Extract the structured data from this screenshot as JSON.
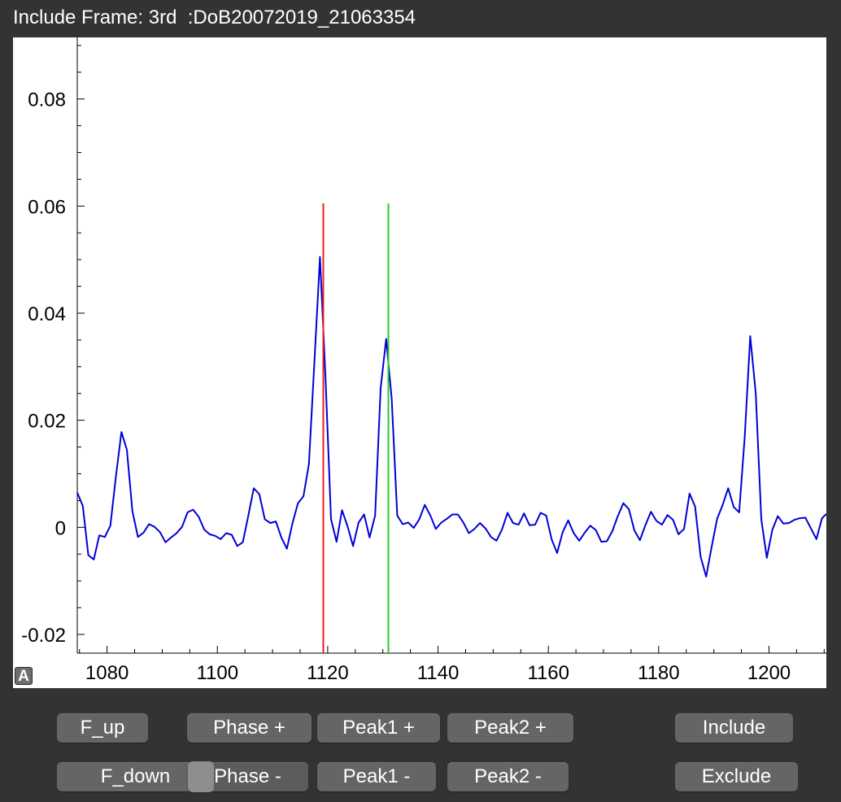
{
  "window": {
    "title": "Include Frame: 3rd  :DoB20072019_21063354"
  },
  "autoscale_button": {
    "label": "A"
  },
  "buttons": {
    "f_up": "F_up",
    "f_down": "F_down",
    "phase_plus": "Phase +",
    "phase_minus": "Phase -",
    "peak1_plus": "Peak1 +",
    "peak1_minus": "Peak1 -",
    "peak2_plus": "Peak2 +",
    "peak2_minus": "Peak2 -",
    "include": "Include",
    "exclude": "Exclude"
  },
  "chart_data": {
    "type": "line",
    "title": "",
    "xlabel": "",
    "ylabel": "",
    "xlim": [
      1074.6,
      1210.4
    ],
    "ylim": [
      -0.0235,
      0.0915
    ],
    "x_ticks": [
      1080,
      1100,
      1120,
      1140,
      1160,
      1180,
      1200
    ],
    "x_tick_labels": [
      "1080",
      "1100",
      "1120",
      "1140",
      "1160",
      "1180",
      "1200"
    ],
    "y_ticks": [
      -0.02,
      0,
      0.02,
      0.04,
      0.06,
      0.08
    ],
    "y_tick_labels": [
      "-0.02",
      "0",
      "0.02",
      "0.04",
      "0.06",
      "0.08"
    ],
    "grid": false,
    "legend": "none",
    "markers": [
      {
        "name": "peak1-marker",
        "x": 1119.2,
        "y_range": [
          -0.0235,
          0.0605
        ],
        "color": "#e8201c"
      },
      {
        "name": "peak2-marker",
        "x": 1131.0,
        "y_range": [
          -0.0235,
          0.0605
        ],
        "color": "#22cc22"
      }
    ],
    "series": [
      {
        "color": "#0000d8",
        "x": [
          1074.6,
          1075.6,
          1076.6,
          1077.6,
          1078.6,
          1079.6,
          1080.6,
          1081.6,
          1082.6,
          1083.6,
          1084.6,
          1085.6,
          1086.6,
          1087.6,
          1088.6,
          1089.6,
          1090.6,
          1091.6,
          1092.6,
          1093.6,
          1094.6,
          1095.6,
          1096.6,
          1097.6,
          1098.6,
          1099.6,
          1100.6,
          1101.6,
          1102.6,
          1103.6,
          1104.6,
          1105.6,
          1106.6,
          1107.6,
          1108.6,
          1109.6,
          1110.6,
          1111.6,
          1112.6,
          1113.6,
          1114.6,
          1115.6,
          1116.6,
          1117.6,
          1118.6,
          1119.6,
          1120.6,
          1121.6,
          1122.6,
          1123.6,
          1124.6,
          1125.6,
          1126.6,
          1127.6,
          1128.6,
          1129.6,
          1130.6,
          1131.6,
          1132.6,
          1133.6,
          1134.6,
          1135.6,
          1136.6,
          1137.6,
          1138.6,
          1139.6,
          1140.6,
          1141.6,
          1142.6,
          1143.6,
          1144.6,
          1145.6,
          1146.6,
          1147.6,
          1148.6,
          1149.6,
          1150.6,
          1151.6,
          1152.6,
          1153.6,
          1154.6,
          1155.6,
          1156.6,
          1157.6,
          1158.6,
          1159.6,
          1160.6,
          1161.6,
          1162.6,
          1163.6,
          1164.6,
          1165.6,
          1166.6,
          1167.6,
          1168.6,
          1169.6,
          1170.6,
          1171.6,
          1172.6,
          1173.6,
          1174.6,
          1175.6,
          1176.6,
          1177.6,
          1178.6,
          1179.6,
          1180.6,
          1181.6,
          1182.6,
          1183.6,
          1184.6,
          1185.6,
          1186.6,
          1187.6,
          1188.6,
          1189.6,
          1190.6,
          1191.6,
          1192.6,
          1193.6,
          1194.6,
          1195.6,
          1196.6,
          1197.6,
          1198.6,
          1199.6,
          1200.6,
          1201.6,
          1202.6,
          1203.6,
          1204.6,
          1205.6,
          1206.6,
          1207.6,
          1208.6,
          1209.6,
          1210.4
        ],
        "y": [
          0.0065,
          0.004,
          -0.0052,
          -0.006,
          -0.0015,
          -0.0018,
          0.0003,
          0.0095,
          0.0178,
          0.0145,
          0.003,
          -0.0018,
          -0.001,
          0.0006,
          0.0001,
          -0.0009,
          -0.0028,
          -0.0019,
          -0.0011,
          0.0001,
          0.0028,
          0.0033,
          0.002,
          -0.0004,
          -0.0013,
          -0.0016,
          -0.0022,
          -0.0011,
          -0.0014,
          -0.0035,
          -0.0028,
          0.0021,
          0.0073,
          0.0062,
          0.0015,
          0.0008,
          0.0011,
          -0.0019,
          -0.004,
          0.0007,
          0.0045,
          0.0058,
          0.0118,
          0.031,
          0.0505,
          0.028,
          0.0015,
          -0.0027,
          0.0032,
          0.0002,
          -0.0035,
          0.0009,
          0.0024,
          -0.0019,
          0.0022,
          0.026,
          0.0352,
          0.024,
          0.0022,
          0.0006,
          0.0009,
          -0.0001,
          0.0015,
          0.0042,
          0.0022,
          -0.0003,
          0.0009,
          0.0016,
          0.0024,
          0.0024,
          0.0009,
          -0.0011,
          -0.0003,
          0.0008,
          -0.0002,
          -0.0018,
          -0.0025,
          -0.0004,
          0.0027,
          0.0008,
          0.0005,
          0.0026,
          0.0004,
          0.0005,
          0.0027,
          0.0022,
          -0.0023,
          -0.0048,
          -0.0009,
          0.0013,
          -0.0011,
          -0.0025,
          -0.001,
          0.0003,
          -0.0005,
          -0.0027,
          -0.0026,
          -0.0007,
          0.0021,
          0.0045,
          0.0034,
          -0.0006,
          -0.0024,
          0.0004,
          0.0029,
          0.0012,
          0.0005,
          0.0023,
          0.0014,
          -0.0013,
          -0.0003,
          0.0063,
          0.0039,
          -0.0055,
          -0.0092,
          -0.0037,
          0.0016,
          0.0042,
          0.0073,
          0.0038,
          0.0028,
          0.0168,
          0.0357,
          0.025,
          0.0015,
          -0.0057,
          -0.0005,
          0.0021,
          0.0007,
          0.0008,
          0.0014,
          0.0017,
          0.0018,
          -0.0002,
          -0.0022,
          0.0017,
          0.0025
        ]
      }
    ]
  }
}
